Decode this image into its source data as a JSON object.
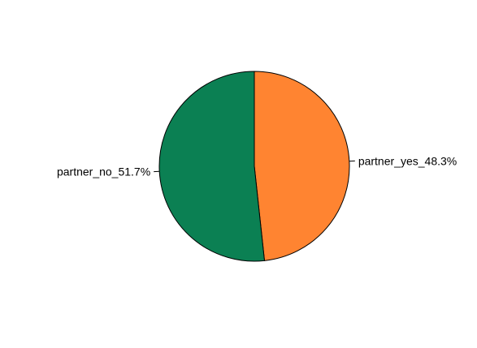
{
  "chart_data": {
    "type": "pie",
    "title": "",
    "slices": [
      {
        "label": "partner_yes_48.3%",
        "category": "partner_yes",
        "percent": 48.3,
        "color": "#FF8431"
      },
      {
        "label": "partner_no_51.7%",
        "category": "partner_no",
        "percent": 51.7,
        "color": "#0B8053"
      }
    ],
    "start_angle_deg": 90,
    "direction": "clockwise",
    "legend": "none"
  }
}
